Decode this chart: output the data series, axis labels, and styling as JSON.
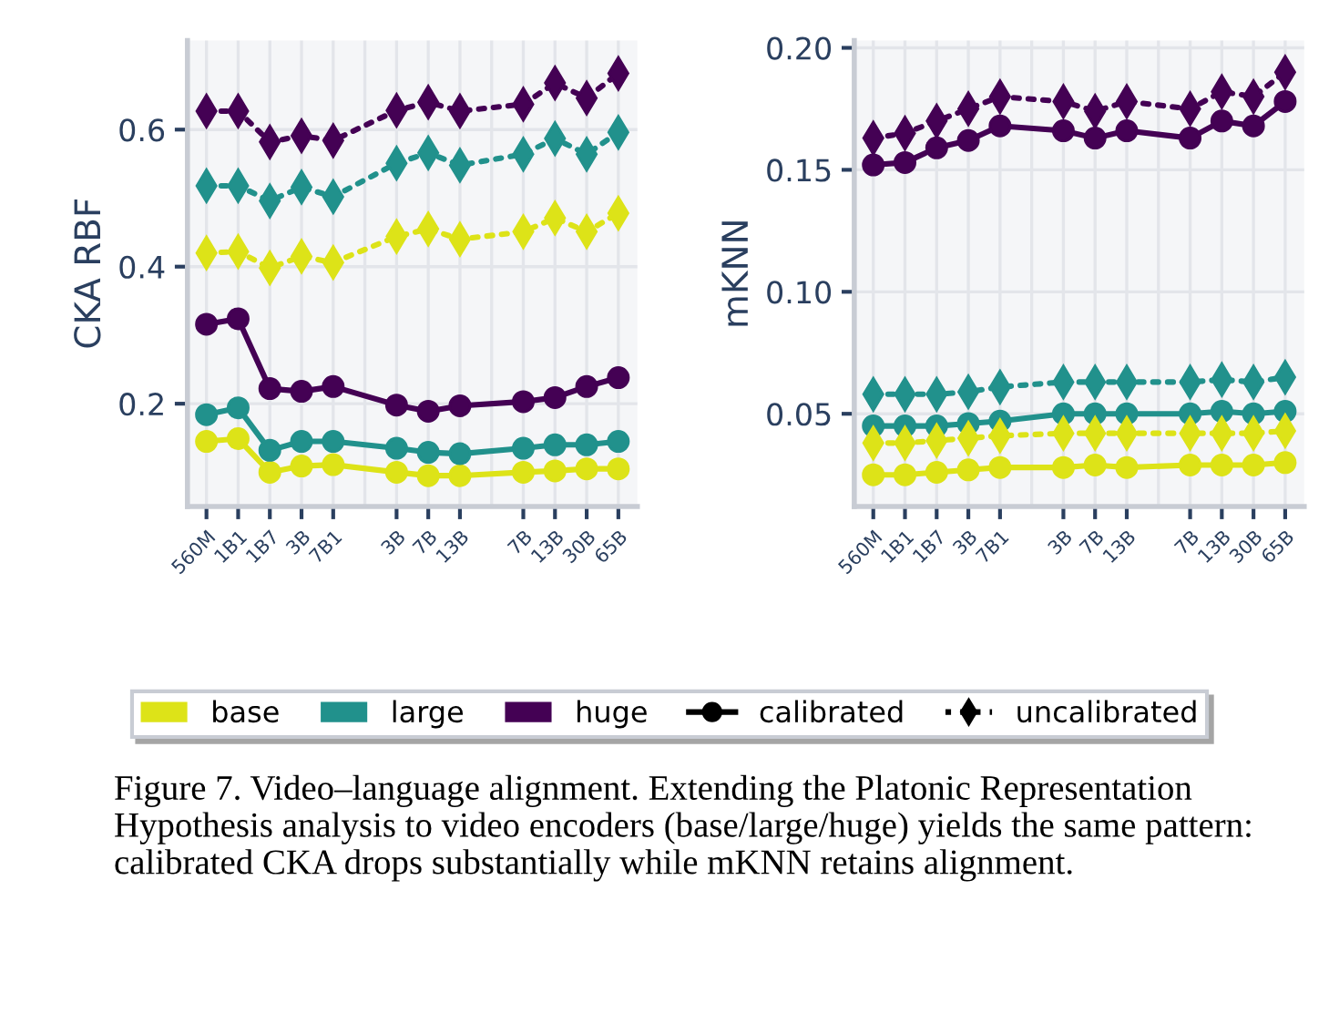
{
  "chart_data": [
    {
      "type": "line",
      "ylabel": "CKA RBF",
      "categories": [
        "560M",
        "1B1",
        "1B7",
        "3B",
        "7B1",
        null,
        "3B",
        "7B",
        "13B",
        null,
        "7B",
        "13B",
        "30B",
        "65B"
      ],
      "ylim": [
        0.05,
        0.73
      ],
      "yticks": [
        0.2,
        0.4,
        0.6
      ],
      "grid": true,
      "legend": "bottom",
      "annotations": [
        "calibrated",
        "uncalibrated",
        "Figure 7. Video–language alignment. Extending the Platonic Representation Hypothesis analysis to video encoders (base/large/huge) yields the same pattern: calibrated CKA drops substantially while mKNN retains alignment."
      ],
      "series": [
        {
          "name": "base",
          "color": "#dde318",
          "marker": "circle",
          "line_style": "solid",
          "values": [
            0.145,
            0.149,
            0.1,
            0.109,
            0.111,
            null,
            0.1,
            0.095,
            0.095,
            null,
            0.1,
            0.102,
            0.105,
            0.105
          ]
        },
        {
          "name": "large",
          "color": "#21918c",
          "marker": "circle",
          "line_style": "solid",
          "values": [
            0.184,
            0.194,
            0.132,
            0.145,
            0.145,
            null,
            0.135,
            0.129,
            0.127,
            null,
            0.135,
            0.14,
            0.14,
            0.145
          ]
        },
        {
          "name": "huge",
          "color": "#440154",
          "marker": "circle",
          "line_style": "solid",
          "values": [
            0.316,
            0.324,
            0.222,
            0.218,
            0.225,
            null,
            0.198,
            0.189,
            0.197,
            null,
            0.203,
            0.209,
            0.225,
            0.238
          ]
        },
        {
          "color": "#dde318",
          "marker": "diamond",
          "line_style": "dotted",
          "values": [
            0.42,
            0.422,
            0.398,
            0.415,
            0.406,
            null,
            0.444,
            0.455,
            0.44,
            null,
            0.451,
            0.471,
            0.451,
            0.478
          ]
        },
        {
          "color": "#21918c",
          "marker": "diamond",
          "line_style": "dotted",
          "values": [
            0.518,
            0.518,
            0.496,
            0.516,
            0.502,
            null,
            0.551,
            0.566,
            0.548,
            null,
            0.564,
            0.587,
            0.564,
            0.596
          ]
        },
        {
          "color": "#440154",
          "marker": "diamond",
          "line_style": "dotted",
          "values": [
            0.627,
            0.627,
            0.582,
            0.591,
            0.584,
            null,
            0.628,
            0.64,
            0.627,
            null,
            0.637,
            0.668,
            0.646,
            0.682
          ]
        }
      ]
    },
    {
      "type": "line",
      "ylabel": "mKNN",
      "categories": [
        "560M",
        "1B1",
        "1B7",
        "3B",
        "7B1",
        null,
        "3B",
        "7B",
        "13B",
        null,
        "7B",
        "13B",
        "30B",
        "65B"
      ],
      "ylim": [
        0.012,
        0.203
      ],
      "yticks": [
        {
          "value": 0.05,
          "label": "0.05"
        },
        {
          "value": 0.1,
          "label": "0.10"
        },
        {
          "value": 0.15,
          "label": "0.15"
        },
        {
          "value": 0.2,
          "label": "0.20"
        }
      ],
      "grid": true,
      "series": [
        {
          "color": "#dde318",
          "marker": "circle",
          "line_style": "solid",
          "values": [
            0.025,
            0.025,
            0.026,
            0.027,
            0.028,
            null,
            0.028,
            0.029,
            0.028,
            null,
            0.029,
            0.029,
            0.029,
            0.03
          ]
        },
        {
          "color": "#21918c",
          "marker": "circle",
          "line_style": "solid",
          "values": [
            0.045,
            0.045,
            0.045,
            0.046,
            0.047,
            null,
            0.05,
            0.05,
            0.05,
            null,
            0.05,
            0.051,
            0.05,
            0.051
          ]
        },
        {
          "color": "#440154",
          "marker": "circle",
          "line_style": "solid",
          "values": [
            0.152,
            0.153,
            0.159,
            0.162,
            0.168,
            null,
            0.166,
            0.163,
            0.166,
            null,
            0.163,
            0.17,
            0.168,
            0.178
          ]
        },
        {
          "color": "#dde318",
          "marker": "diamond",
          "line_style": "dotted",
          "values": [
            0.038,
            0.038,
            0.039,
            0.04,
            0.041,
            null,
            0.042,
            0.042,
            0.042,
            null,
            0.042,
            0.042,
            0.042,
            0.043
          ]
        },
        {
          "color": "#21918c",
          "marker": "diamond",
          "line_style": "dotted",
          "values": [
            0.058,
            0.058,
            0.058,
            0.059,
            0.061,
            null,
            0.063,
            0.063,
            0.063,
            null,
            0.063,
            0.064,
            0.063,
            0.065
          ]
        },
        {
          "color": "#440154",
          "marker": "diamond",
          "line_style": "dotted",
          "values": [
            0.163,
            0.165,
            0.17,
            0.175,
            0.18,
            null,
            0.178,
            0.174,
            0.178,
            null,
            0.175,
            0.182,
            0.18,
            0.19
          ]
        }
      ]
    }
  ]
}
